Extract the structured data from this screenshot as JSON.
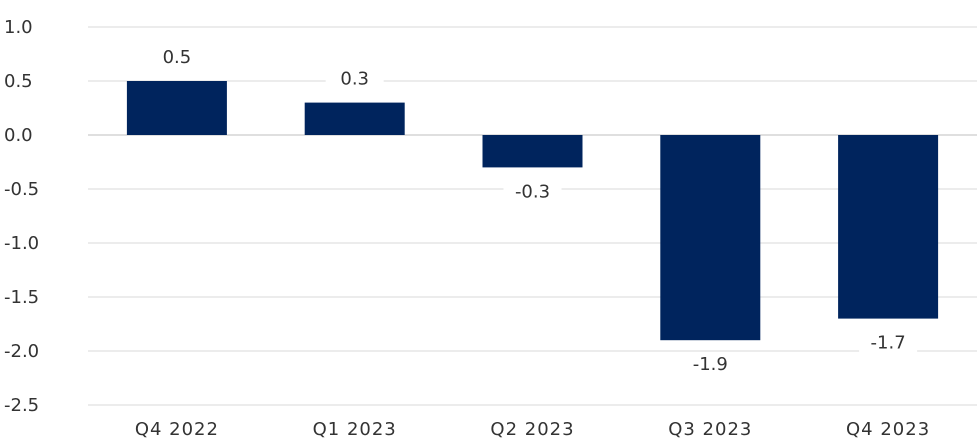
{
  "chart_data": {
    "type": "bar",
    "title": "",
    "xlabel": "",
    "ylabel": "",
    "categories": [
      "Q4 2022",
      "Q1 2023",
      "Q2 2023",
      "Q3 2023",
      "Q4 2023"
    ],
    "values": [
      0.5,
      0.3,
      -0.3,
      -1.9,
      -1.7
    ],
    "value_labels": [
      "0.5",
      "0.3",
      "-0.3",
      "-1.9",
      "-1.7"
    ],
    "ylim": [
      -2.5,
      1.0
    ],
    "yticks": [
      1.0,
      0.5,
      0.0,
      -0.5,
      -1.0,
      -1.5,
      -2.0,
      -2.5
    ],
    "ytick_labels": [
      "1.0",
      "0.5",
      "0.0",
      "-0.5",
      "-1.0",
      "-1.5",
      "-2.0",
      "-2.5"
    ],
    "grid": true,
    "legend": "none",
    "colors": {
      "bar": "#00245D",
      "grid": "#D9D9D9",
      "axis_zero": "#BFBFBF",
      "text": "#333333"
    }
  }
}
